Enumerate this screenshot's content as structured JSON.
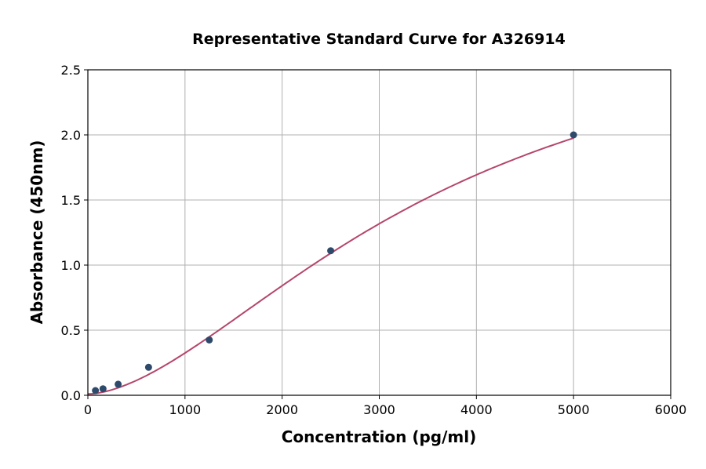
{
  "chart_data": {
    "type": "scatter",
    "title": "Representative Standard Curve for A326914",
    "xlabel": "Concentration (pg/ml)",
    "ylabel": "Absorbance (450nm)",
    "xlim": [
      0,
      6000
    ],
    "ylim": [
      0,
      2.5
    ],
    "xticks": [
      0,
      1000,
      2000,
      3000,
      4000,
      5000,
      6000
    ],
    "yticks": [
      "0.0",
      "0.5",
      "1.0",
      "1.5",
      "2.0",
      "2.5"
    ],
    "grid": true,
    "points": [
      {
        "x": 78,
        "y": 0.036
      },
      {
        "x": 156,
        "y": 0.05
      },
      {
        "x": 312,
        "y": 0.085
      },
      {
        "x": 625,
        "y": 0.215
      },
      {
        "x": 1250,
        "y": 0.425
      },
      {
        "x": 2500,
        "y": 1.11
      },
      {
        "x": 5000,
        "y": 2.0
      }
    ],
    "fit": {
      "model": "4PL",
      "a": 0.01,
      "b": 1.7,
      "c": 3600,
      "d": 3.1,
      "x_range": [
        0,
        5000
      ]
    },
    "colors": {
      "point": "#2e4a6b",
      "curve": "#b5466b",
      "grid": "#b0b0b0"
    }
  }
}
